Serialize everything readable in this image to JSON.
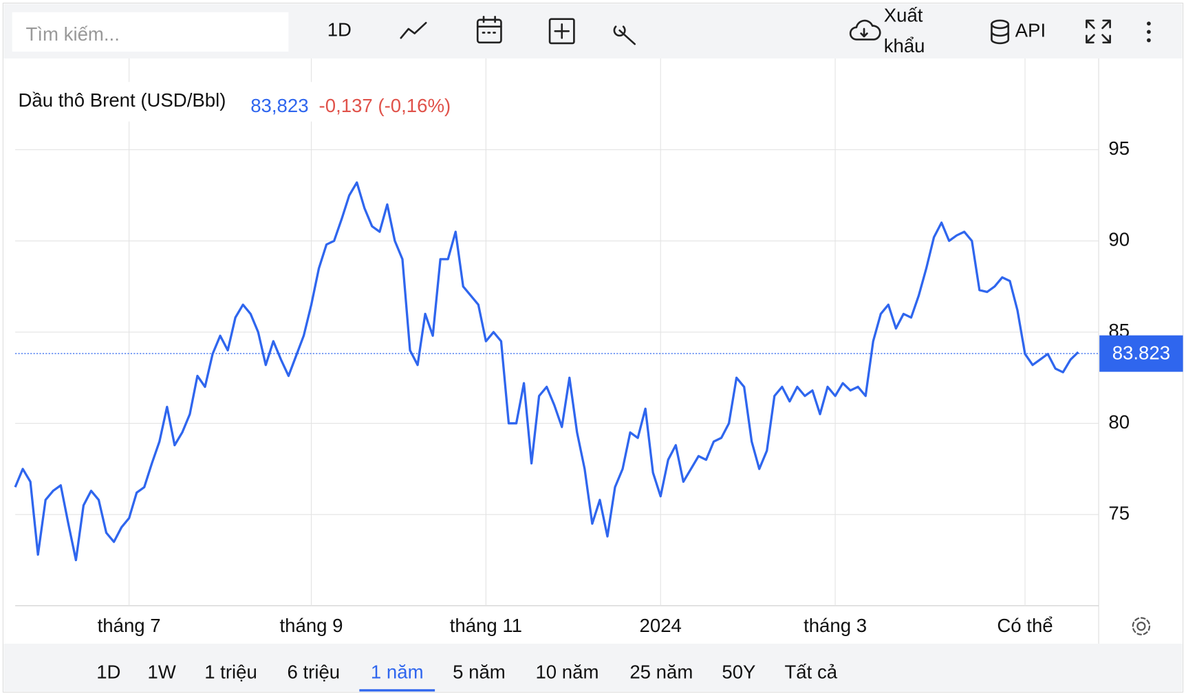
{
  "toolbar": {
    "search_placeholder": "Tìm kiếm...",
    "interval": "1D",
    "export": [
      "Xuất",
      "khẩu"
    ],
    "api": "API"
  },
  "quote": {
    "price": "83,823",
    "change": "-0,137 (-0,16%)"
  },
  "ranges": {
    "items": [
      "1D",
      "1W",
      "1 triệu",
      "6 triệu",
      "1 năm",
      "5 năm",
      "10 năm",
      "25 năm",
      "50Y",
      "Tất cả"
    ],
    "active": 4
  },
  "chart_data": {
    "type": "line",
    "title": "Dầu thô Brent (USD/Bbl)",
    "categories": [
      null,
      null,
      null,
      null,
      null,
      null,
      null,
      null,
      null,
      null,
      null,
      null,
      null,
      null,
      null,
      "tháng 7",
      null,
      null,
      null,
      null,
      null,
      null,
      null,
      null,
      null,
      null,
      null,
      null,
      null,
      null,
      null,
      null,
      null,
      null,
      null,
      null,
      null,
      null,
      null,
      "tháng 9",
      null,
      null,
      null,
      null,
      null,
      null,
      null,
      null,
      null,
      null,
      null,
      null,
      null,
      null,
      null,
      null,
      null,
      null,
      null,
      null,
      null,
      null,
      "tháng 11",
      null,
      null,
      null,
      null,
      null,
      null,
      null,
      null,
      null,
      null,
      null,
      null,
      null,
      null,
      null,
      null,
      null,
      null,
      null,
      null,
      null,
      null,
      "2024",
      null,
      null,
      null,
      null,
      null,
      null,
      null,
      null,
      null,
      null,
      null,
      null,
      null,
      null,
      null,
      null,
      null,
      null,
      null,
      null,
      null,
      null,
      "tháng 3",
      null,
      null,
      null,
      null,
      null,
      null,
      null,
      null,
      null,
      null,
      null,
      null,
      null,
      null,
      null,
      null,
      null,
      null,
      null,
      null,
      null,
      null,
      null,
      null,
      "Có thể",
      null,
      null,
      null,
      null,
      null,
      null,
      null
    ],
    "series": [
      {
        "name": "Dầu thô Brent (USD/Bbl)",
        "color": "#2f66ee",
        "values": [
          76.5,
          77.5,
          76.8,
          72.8,
          75.8,
          76.3,
          76.6,
          74.5,
          72.5,
          75.5,
          76.3,
          75.8,
          74.0,
          73.5,
          74.3,
          74.8,
          76.2,
          76.5,
          77.8,
          79.0,
          80.9,
          78.8,
          79.5,
          80.5,
          82.6,
          82.0,
          83.8,
          84.8,
          84.0,
          85.8,
          86.5,
          86.0,
          85.0,
          83.2,
          84.5,
          83.5,
          82.6,
          83.7,
          84.8,
          86.5,
          88.5,
          89.8,
          90.0,
          91.2,
          92.5,
          93.2,
          91.8,
          90.8,
          90.5,
          92.0,
          90.0,
          89.0,
          84.0,
          83.2,
          86.0,
          84.8,
          89.0,
          89.0,
          90.5,
          87.5,
          87.0,
          86.5,
          84.5,
          85.0,
          84.5,
          80.0,
          80.0,
          82.2,
          77.8,
          81.5,
          82.0,
          81.0,
          79.8,
          82.5,
          79.5,
          77.5,
          74.5,
          75.8,
          73.8,
          76.5,
          77.5,
          79.5,
          79.2,
          80.8,
          77.3,
          76.0,
          78.0,
          78.8,
          76.8,
          77.5,
          78.2,
          78.0,
          79.0,
          79.2,
          80.0,
          82.5,
          82.0,
          79.0,
          77.5,
          78.5,
          81.5,
          82.0,
          81.2,
          82.0,
          81.5,
          81.8,
          80.5,
          82.0,
          81.5,
          82.2,
          81.8,
          82.0,
          81.5,
          84.5,
          86.0,
          86.5,
          85.2,
          86.0,
          85.8,
          87.0,
          88.5,
          90.2,
          91.0,
          90.0,
          90.3,
          90.5,
          90.0,
          87.3,
          87.2,
          87.5,
          88.0,
          87.8,
          86.2,
          83.8,
          83.2,
          83.5,
          83.8,
          83.0,
          82.8,
          83.5,
          83.9
        ]
      }
    ],
    "ylim": [
      70,
      100
    ],
    "yticks": [
      75,
      80,
      85,
      90,
      95
    ],
    "grid": true,
    "price_line": 83.823,
    "price_color": "#2f66ee"
  }
}
